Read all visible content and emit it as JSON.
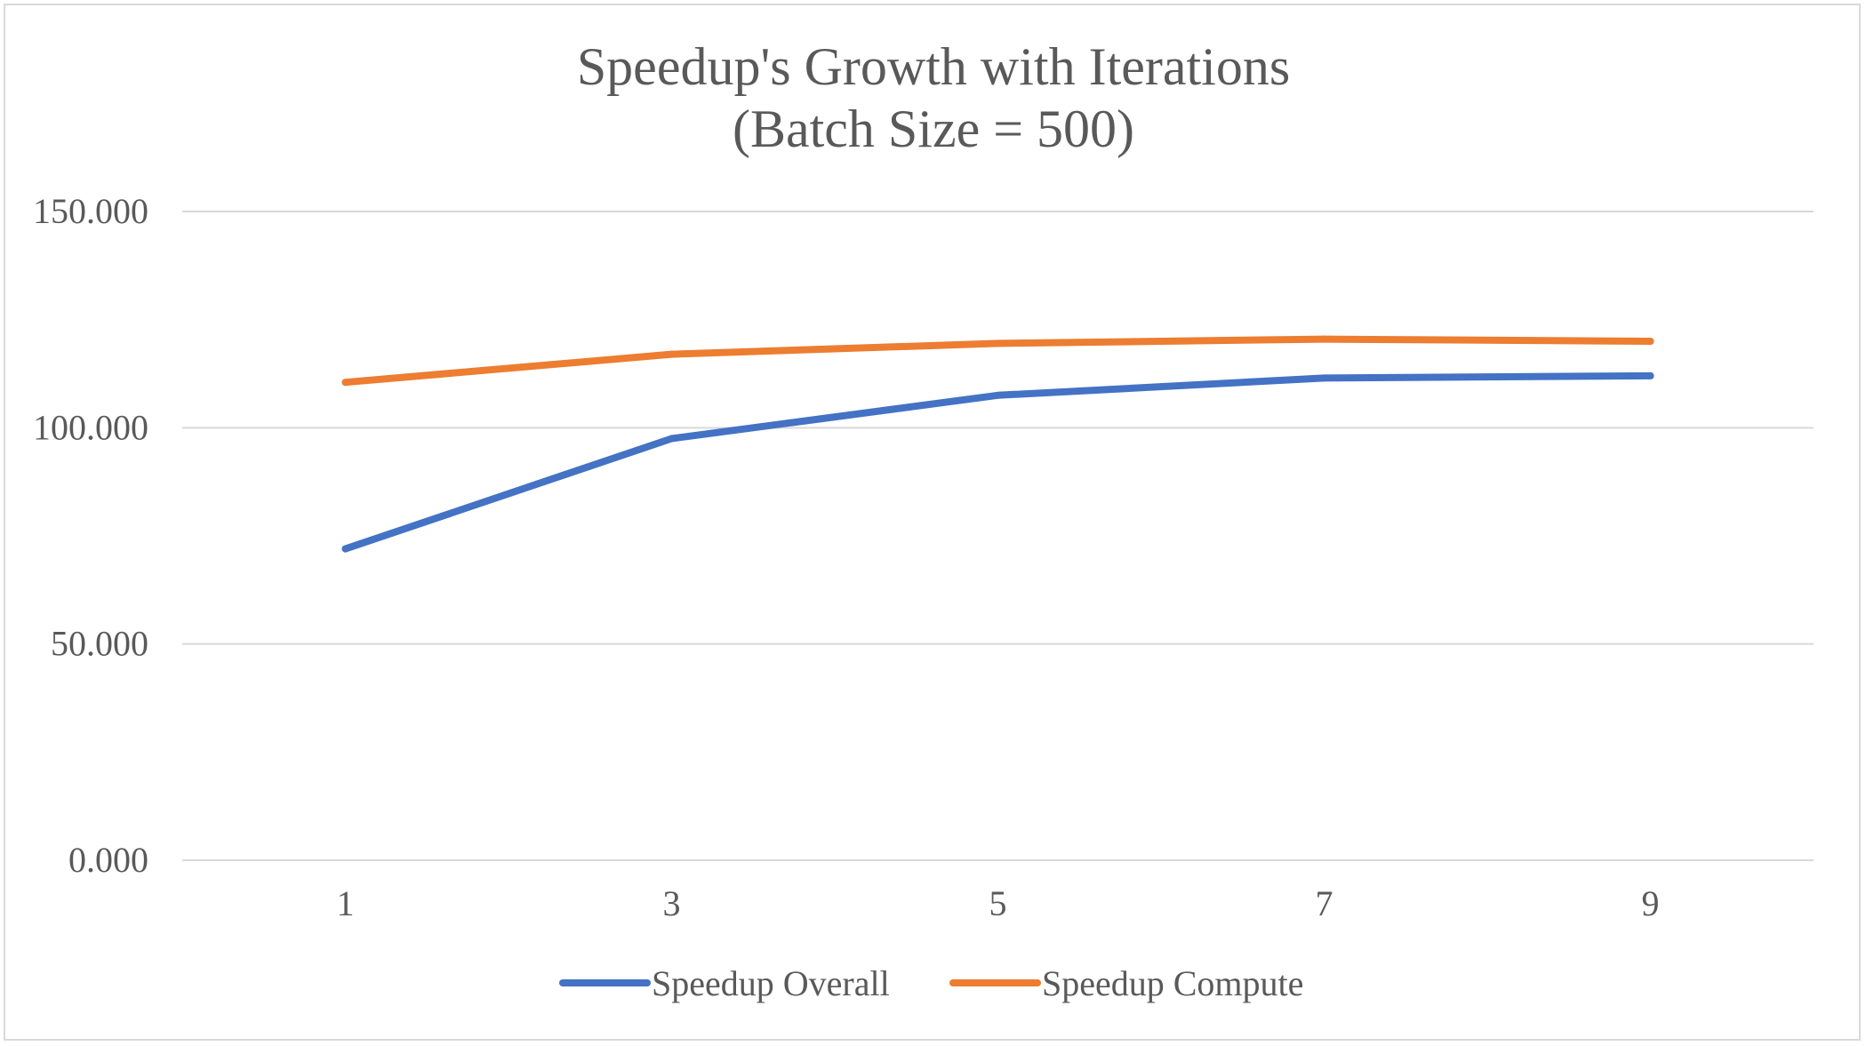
{
  "chart_data": {
    "type": "line",
    "title": "Speedup's Growth with Iterations",
    "subtitle": "(Batch Size = 500)",
    "xlabel": "",
    "ylabel": "",
    "categories": [
      "1",
      "3",
      "5",
      "7",
      "9"
    ],
    "ylim": [
      0,
      150
    ],
    "yticks": [
      0,
      50,
      100,
      150
    ],
    "ytick_labels": [
      "0.000",
      "50.000",
      "100.000",
      "150.000"
    ],
    "grid": true,
    "legend_position": "bottom",
    "series": [
      {
        "name": "Speedup Overall",
        "color": "#4472C4",
        "values": [
          72,
          97.5,
          107.5,
          111.5,
          112
        ]
      },
      {
        "name": "Speedup Compute",
        "color": "#ED7D31",
        "values": [
          110.5,
          117,
          119.5,
          120.5,
          120
        ]
      }
    ]
  }
}
